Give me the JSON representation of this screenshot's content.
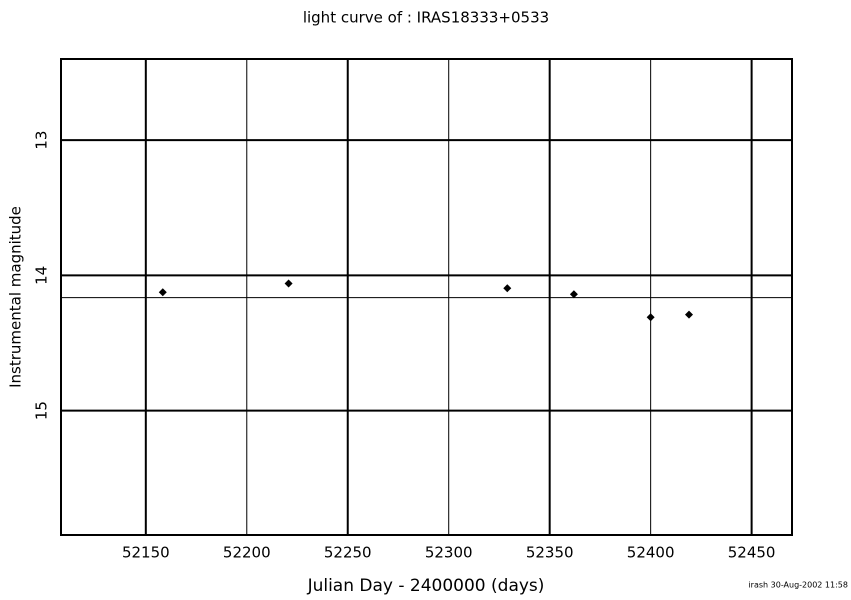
{
  "chart_data": {
    "type": "scatter",
    "title": "light curve of : IRAS18333+0533",
    "x_label": "Julian Day - 2400000 (days)",
    "y_label": "Instrumental magnitude",
    "footer": "irash 30-Aug-2002 11:58",
    "x": [
      52158.4,
      52220.7,
      52329,
      52362,
      52400,
      52419
    ],
    "values": [
      14.125,
      14.06,
      14.095,
      14.14,
      14.31,
      14.29
    ],
    "color": "#000000",
    "mean_line": 14.165,
    "xlim": [
      52108,
      52470
    ],
    "ylim": [
      15.92,
      12.4
    ],
    "xticks": [
      52150,
      52200,
      52250,
      52300,
      52350,
      52400,
      52450
    ],
    "yticks": [
      13,
      14,
      15
    ],
    "grid": true
  }
}
